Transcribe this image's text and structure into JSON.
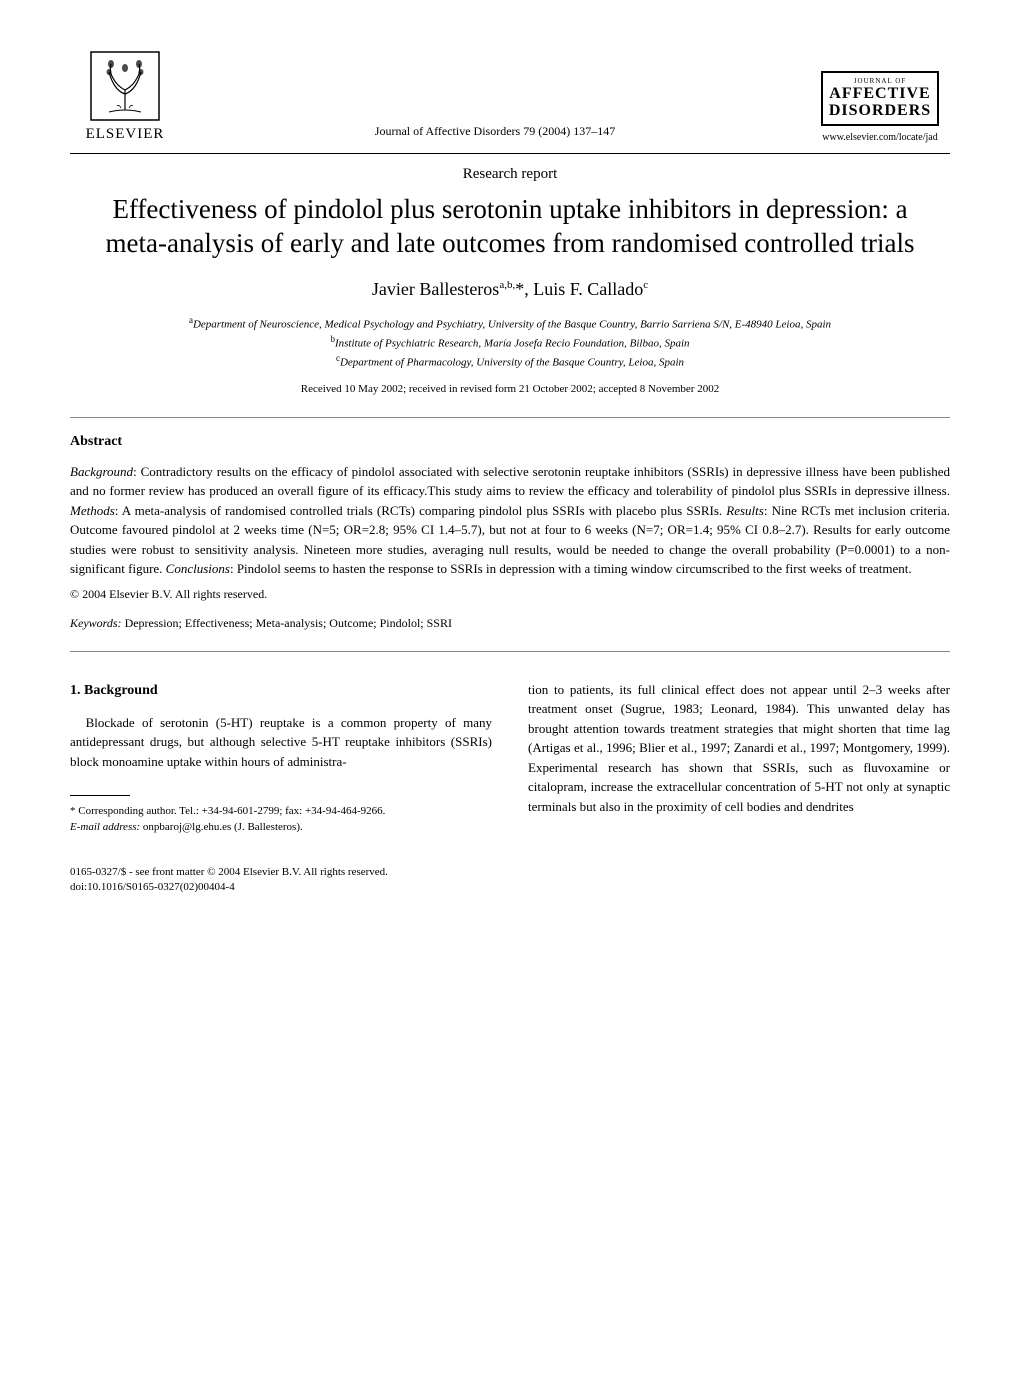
{
  "publisher": {
    "name": "ELSEVIER"
  },
  "journal": {
    "citation": "Journal of Affective Disorders 79 (2004) 137–147",
    "logo_top": "JOURNAL OF",
    "logo_line1": "AFFECTIVE",
    "logo_line2": "DISORDERS",
    "url": "www.elsevier.com/locate/jad"
  },
  "section_label": "Research report",
  "title": "Effectiveness of pindolol plus serotonin uptake inhibitors in depression: a meta-analysis of early and late outcomes from randomised controlled trials",
  "authors_html": "Javier Ballesteros<sup>a,b,</sup>*, Luis F. Callado<sup>c</sup>",
  "affiliations": [
    {
      "sup": "a",
      "text": "Department of Neuroscience, Medical Psychology and Psychiatry, University of the Basque Country, Barrio Sarriena S/N, E-48940 Leioa, Spain"
    },
    {
      "sup": "b",
      "text": "Institute of Psychiatric Research, María Josefa Recio Foundation, Bilbao, Spain"
    },
    {
      "sup": "c",
      "text": "Department of Pharmacology, University of the Basque Country, Leioa, Spain"
    }
  ],
  "received": "Received 10 May 2002; received in revised form 21 October 2002; accepted 8 November 2002",
  "abstract": {
    "heading": "Abstract",
    "body": "Background: Contradictory results on the efficacy of pindolol associated with selective serotonin reuptake inhibitors (SSRIs) in depressive illness have been published and no former review has produced an overall figure of its efficacy.This study aims to review the efficacy and tolerability of pindolol plus SSRIs in depressive illness. Methods: A meta-analysis of randomised controlled trials (RCTs) comparing pindolol plus SSRIs with placebo plus SSRIs. Results: Nine RCTs met inclusion criteria. Outcome favoured pindolol at 2 weeks time (N=5; OR=2.8; 95% CI 1.4–5.7), but not at four to 6 weeks (N=7; OR=1.4; 95% CI 0.8–2.7). Results for early outcome studies were robust to sensitivity analysis. Nineteen more studies, averaging null results, would be needed to change the overall probability (P=0.0001) to a non-significant figure. Conclusions: Pindolol seems to hasten the response to SSRIs in depression with a timing window circumscribed to the first weeks of treatment.",
    "copyright": "© 2004 Elsevier B.V. All rights reserved."
  },
  "keywords": {
    "label": "Keywords:",
    "text": " Depression; Effectiveness; Meta-analysis; Outcome; Pindolol; SSRI"
  },
  "body": {
    "heading": "1. Background",
    "col1": "Blockade of serotonin (5-HT) reuptake is a common property of many antidepressant drugs, but although selective 5-HT reuptake inhibitors (SSRIs) block monoamine uptake within hours of administra-",
    "col2": "tion to patients, its full clinical effect does not appear until 2–3 weeks after treatment onset (Sugrue, 1983; Leonard, 1984). This unwanted delay has brought attention towards treatment strategies that might shorten that time lag (Artigas et al., 1996; Blier et al., 1997; Zanardi et al., 1997; Montgomery, 1999). Experimental research has shown that SSRIs, such as fluvoxamine or citalopram, increase the extracellular concentration of 5-HT not only at synaptic terminals but also in the proximity of cell bodies and dendrites"
  },
  "footnotes": {
    "corr": "* Corresponding author. Tel.: +34-94-601-2799; fax: +34-94-464-9266.",
    "email_label": "E-mail address:",
    "email": " onpbaroj@lg.ehu.es (J. Ballesteros)."
  },
  "bottom": {
    "line1": "0165-0327/$ - see front matter © 2004 Elsevier B.V. All rights reserved.",
    "line2": "doi:10.1016/S0165-0327(02)00404-4"
  }
}
